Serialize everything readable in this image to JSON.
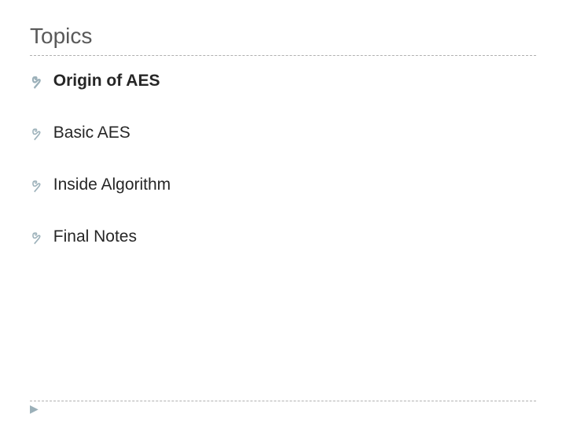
{
  "slide": {
    "title": "Topics",
    "title_color": "#595959",
    "title_fontsize": 28,
    "background_color": "#ffffff",
    "divider_color": "#b0b0b0",
    "bullet_color": "#9bb0b9",
    "bullet_glyph": "ຯ",
    "body_text_color": "#262626",
    "body_fontsize": 21,
    "topics": [
      {
        "label": "Origin of AES",
        "bold": true
      },
      {
        "label": "Basic AES",
        "bold": false
      },
      {
        "label": "Inside Algorithm",
        "bold": false
      },
      {
        "label": "Final Notes",
        "bold": false
      }
    ],
    "footer_marker": "▶"
  }
}
